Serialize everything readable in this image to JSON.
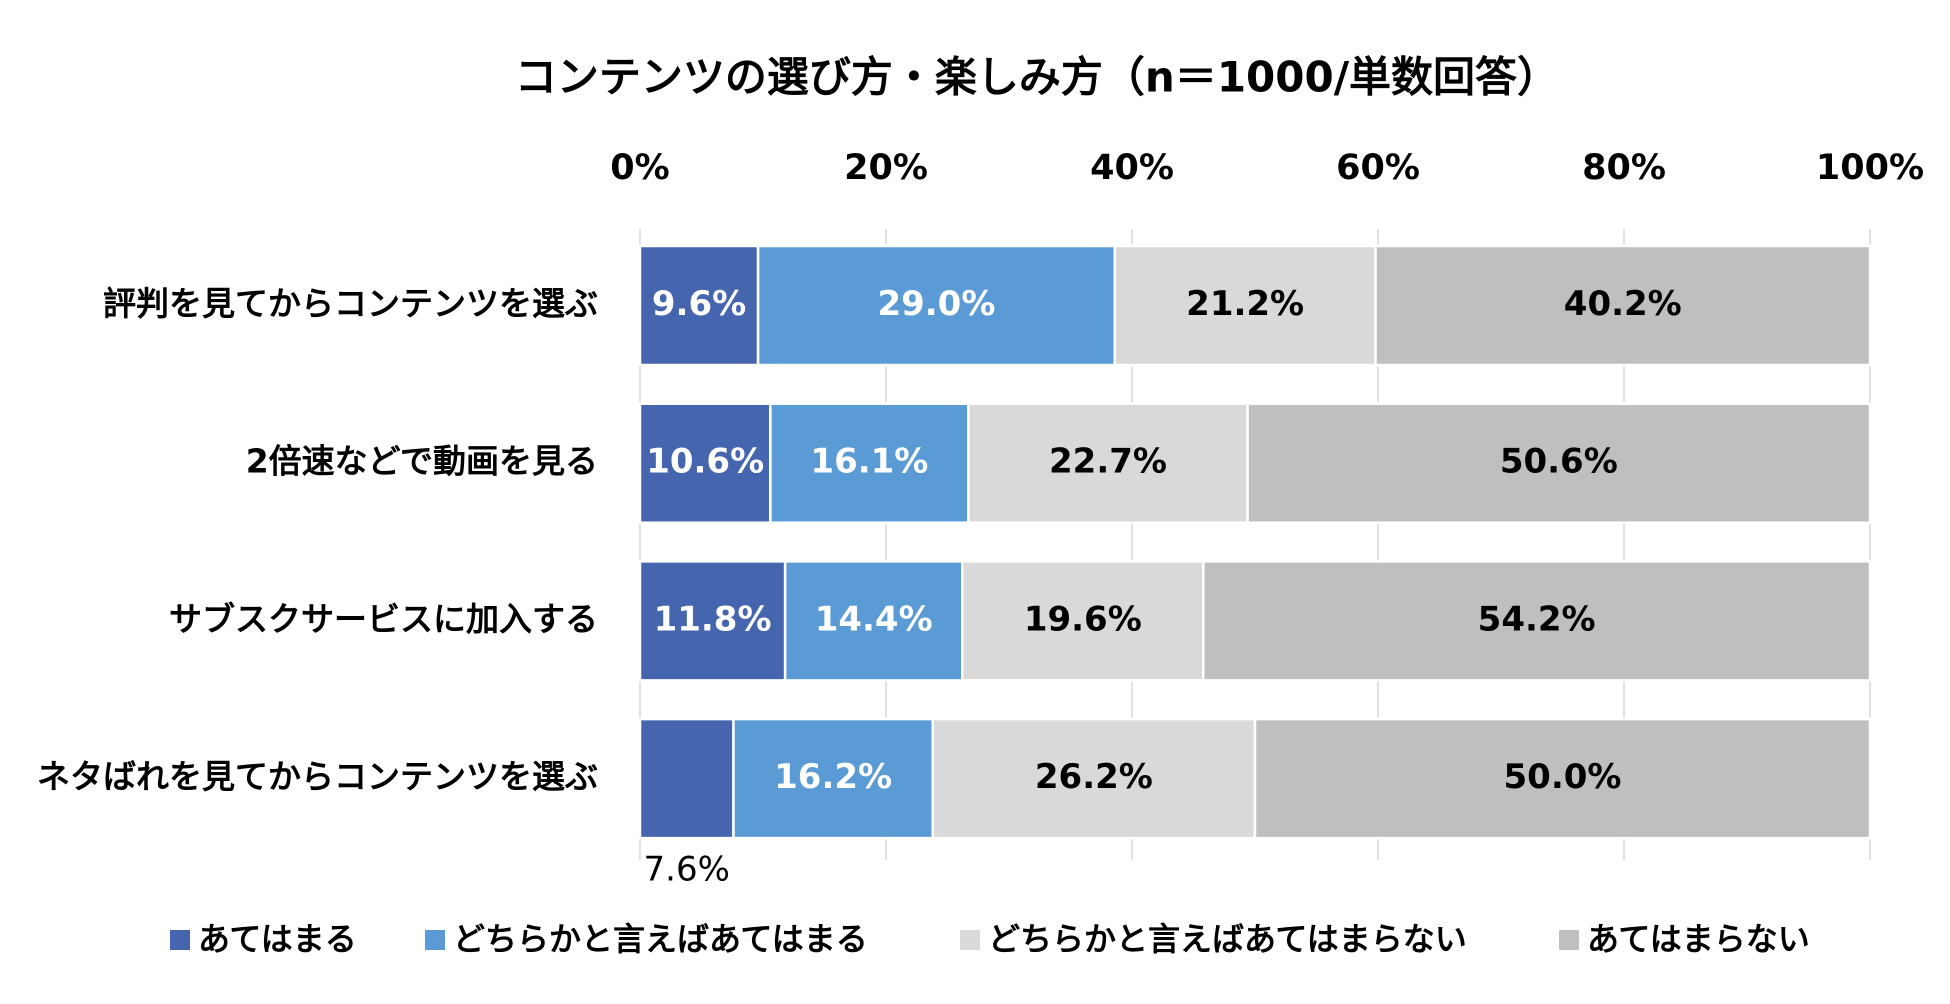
{
  "chart_data": {
    "type": "bar",
    "orientation": "horizontal-stacked-100-percent",
    "title": "コンテンツの選び方・楽しみ方（n＝1000/単数回答）",
    "xlim": [
      0,
      100
    ],
    "xtick_values": [
      0,
      20,
      40,
      60,
      80,
      100
    ],
    "xtick_labels": [
      "0%",
      "20%",
      "40%",
      "60%",
      "80%",
      "100%"
    ],
    "axis_position": "top",
    "grid": true,
    "legend_position": "bottom",
    "categories": [
      "評判を見てからコンテンツを選ぶ",
      "2倍速などで動画を見る",
      "サブスクサービスに加入する",
      "ネタばれを見てからコンテンツを選ぶ"
    ],
    "series": [
      {
        "name": "あてはまる",
        "color": "#4565ae",
        "label_color": "#ffffff",
        "values": [
          9.6,
          10.6,
          11.8,
          7.6
        ],
        "labels": [
          "9.6%",
          "10.6%",
          "11.8%",
          "7.6%"
        ],
        "label_positions": [
          "inside",
          "inside",
          "inside",
          "below"
        ]
      },
      {
        "name": "どちらかと言えばあてはまる",
        "color": "#5b9bd5",
        "label_color": "#ffffff",
        "values": [
          29.0,
          16.1,
          14.4,
          16.2
        ],
        "labels": [
          "29.0%",
          "16.1%",
          "14.4%",
          "16.2%"
        ],
        "label_positions": [
          "inside",
          "inside",
          "inside",
          "inside"
        ]
      },
      {
        "name": "どちらかと言えばあてはまらない",
        "color": "#d9d9d9",
        "label_color": "#000000",
        "values": [
          21.2,
          22.7,
          19.6,
          26.2
        ],
        "labels": [
          "21.2%",
          "22.7%",
          "19.6%",
          "26.2%"
        ],
        "label_positions": [
          "inside",
          "inside",
          "inside",
          "inside"
        ]
      },
      {
        "name": "あてはまらない",
        "color": "#bfbfbf",
        "label_color": "#000000",
        "values": [
          40.2,
          50.6,
          54.2,
          50.0
        ],
        "labels": [
          "40.2%",
          "50.6%",
          "54.2%",
          "50.0%"
        ],
        "label_positions": [
          "inside",
          "inside",
          "inside",
          "inside"
        ]
      }
    ]
  }
}
